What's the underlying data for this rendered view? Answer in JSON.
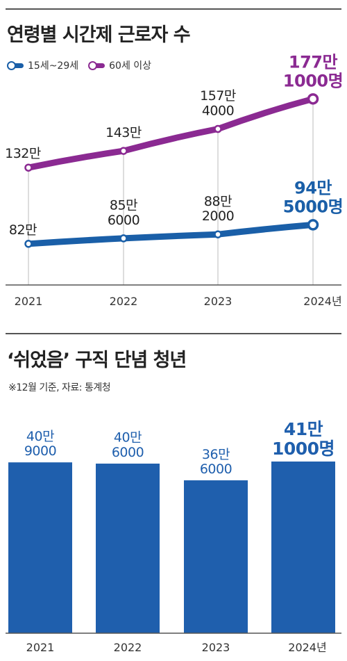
{
  "titles": {
    "line_chart": "연령별 시간제 근로자 수",
    "bar_chart": "‘쉬었음’ 구직 단념 청년"
  },
  "note": "※12월 기준, 자료: 통계청",
  "colors": {
    "purple": "#8b2a92",
    "blue": "#1a5fa8",
    "bar": "#1f5fad",
    "grid": "#bbbbbb"
  },
  "chart_data": [
    {
      "type": "line",
      "title": "연령별 시간제 근로자 수",
      "x": [
        "2021",
        "2022",
        "2023",
        "2024년"
      ],
      "series": [
        {
          "name": "15세~29세",
          "values": [
            82,
            85.6,
            88.2,
            94.5
          ],
          "labels": [
            "82만",
            "85만\n6000",
            "88만\n2000",
            "94만\n5000명"
          ]
        },
        {
          "name": "60세 이상",
          "values": [
            132,
            143,
            157.4,
            177.1
          ],
          "labels": [
            "132만",
            "143만",
            "157만\n4000",
            "177만\n1000명"
          ]
        }
      ],
      "ylim": [
        55,
        185
      ],
      "grid": "vertical"
    },
    {
      "type": "bar",
      "title": "‘쉬었음’ 구직 단념 청년",
      "categories": [
        "2021",
        "2022",
        "2023",
        "2024년"
      ],
      "values": [
        40.9,
        40.6,
        36.6,
        41.1
      ],
      "labels": [
        "40만\n9000",
        "40만\n6000",
        "36만\n6000",
        "41만\n1000명"
      ],
      "ylim": [
        0,
        42.6
      ]
    }
  ]
}
